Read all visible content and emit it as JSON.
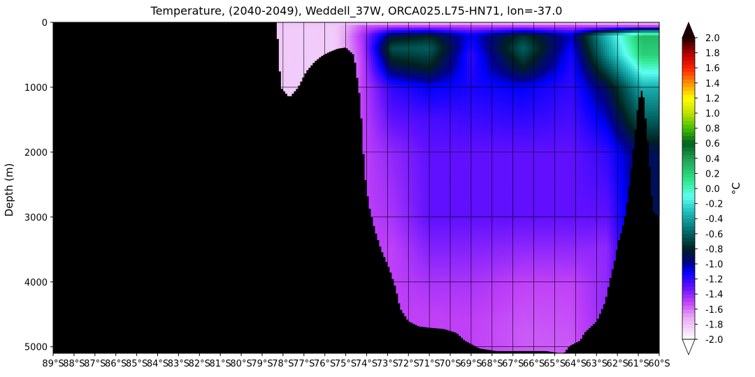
{
  "chart_data": {
    "type": "heatmap",
    "title": "Temperature, (2040-2049), Weddell_37W, ORCA025.L75-HN71, lon=-37.0",
    "ylabel": "Depth (m)",
    "xlabel": "",
    "x_ticks": [
      "89°S",
      "88°S",
      "87°S",
      "86°S",
      "85°S",
      "84°S",
      "83°S",
      "82°S",
      "81°S",
      "80°S",
      "79°S",
      "78°S",
      "77°S",
      "76°S",
      "75°S",
      "74°S",
      "73°S",
      "72°S",
      "71°S",
      "70°S",
      "69°S",
      "68°S",
      "67°S",
      "66°S",
      "65°S",
      "64°S",
      "63°S",
      "62°S",
      "61°S",
      "60°S"
    ],
    "x_tick_values": [
      -89,
      -88,
      -87,
      -86,
      -85,
      -84,
      -83,
      -82,
      -81,
      -80,
      -79,
      -78,
      -77,
      -76,
      -75,
      -74,
      -73,
      -72,
      -71,
      -70,
      -69,
      -68,
      -67,
      -66,
      -65,
      -64,
      -63,
      -62,
      -61,
      -60
    ],
    "y_ticks": [
      "0",
      "1000",
      "2000",
      "3000",
      "4000",
      "5000"
    ],
    "y_tick_values": [
      0,
      1000,
      2000,
      3000,
      4000,
      5000
    ],
    "xlim": [
      -89,
      -60
    ],
    "ylim": [
      5100,
      0
    ],
    "grid": true,
    "colorbar": {
      "label": "°C",
      "tick_labels": [
        "2.0",
        "1.8",
        "1.6",
        "1.4",
        "1.2",
        "1.0",
        "0.8",
        "0.6",
        "0.4",
        "0.2",
        "0.0",
        "-0.2",
        "-0.4",
        "-0.6",
        "-0.8",
        "-1.0",
        "-1.2",
        "-1.4",
        "-1.6",
        "-1.8",
        "-2.0"
      ],
      "tick_values": [
        2.0,
        1.8,
        1.6,
        1.4,
        1.2,
        1.0,
        0.8,
        0.6,
        0.4,
        0.2,
        0.0,
        -0.2,
        -0.4,
        -0.6,
        -0.8,
        -1.0,
        -1.2,
        -1.4,
        -1.6,
        -1.8,
        -2.0
      ],
      "range": [
        -2.0,
        2.0
      ],
      "extend": "both",
      "colors": [
        {
          "v": -2.0,
          "c": "#ffffff"
        },
        {
          "v": -1.7,
          "c": "#e8a8f5"
        },
        {
          "v": -1.5,
          "c": "#c040f8"
        },
        {
          "v": -1.3,
          "c": "#6010ff"
        },
        {
          "v": -1.1,
          "c": "#0000ff"
        },
        {
          "v": -1.0,
          "c": "#000090"
        },
        {
          "v": -0.8,
          "c": "#002020"
        },
        {
          "v": -0.6,
          "c": "#006060"
        },
        {
          "v": -0.3,
          "c": "#20c0c0"
        },
        {
          "v": -0.1,
          "c": "#60fff0"
        },
        {
          "v": 0.1,
          "c": "#30e890"
        },
        {
          "v": 0.4,
          "c": "#20a050"
        },
        {
          "v": 0.6,
          "c": "#006020"
        },
        {
          "v": 0.8,
          "c": "#40c000"
        },
        {
          "v": 1.0,
          "c": "#c0e000"
        },
        {
          "v": 1.2,
          "c": "#ffff00"
        },
        {
          "v": 1.4,
          "c": "#ff9000"
        },
        {
          "v": 1.6,
          "c": "#ff2000"
        },
        {
          "v": 1.8,
          "c": "#b00000"
        },
        {
          "v": 2.0,
          "c": "#200000"
        }
      ]
    },
    "land_color": "#000000",
    "bathymetry": {
      "lat": [
        -89,
        -78.3,
        -78.1,
        -77.7,
        -77.3,
        -76.9,
        -76.5,
        -76.2,
        -75.8,
        -75.4,
        -75.0,
        -74.6,
        -74.3,
        -74.1,
        -73.9,
        -73.6,
        -73.3,
        -72.9,
        -72.6,
        -72.4,
        -72.0,
        -71.5,
        -71.0,
        -70.3,
        -69.7,
        -69.3,
        -68.6,
        -67.8,
        -67.0,
        -66.2,
        -65.4,
        -64.6,
        -64.3,
        -63.8,
        -63.6,
        -63.0,
        -62.6,
        -62.4,
        -62.1,
        -62.0,
        -61.8,
        -61.6,
        -61.4,
        -61.2,
        -61.0,
        -60.8,
        -60.7,
        -60.5,
        -60.3,
        -60.0
      ],
      "depth": [
        0,
        0,
        1000,
        1150,
        1000,
        750,
        600,
        520,
        450,
        400,
        380,
        500,
        1200,
        2300,
        2800,
        3200,
        3500,
        3800,
        4100,
        4400,
        4600,
        4680,
        4700,
        4720,
        4780,
        4900,
        5020,
        5060,
        5060,
        5060,
        5060,
        5100,
        4980,
        4900,
        4780,
        4600,
        4300,
        4000,
        3600,
        3400,
        3200,
        2900,
        2400,
        1800,
        1200,
        1000,
        1300,
        2000,
        2900,
        3000
      ]
    },
    "temperature_profiles": [
      {
        "lat": -78.3,
        "depths": [
          0,
          100,
          500,
          1000,
          1100
        ],
        "values": [
          -1.8,
          -1.82,
          -1.82,
          -1.82,
          -1.82
        ]
      },
      {
        "lat": -75.5,
        "depths": [
          0,
          100,
          500
        ],
        "values": [
          -1.8,
          -1.82,
          -1.82
        ]
      },
      {
        "lat": -74.2,
        "depths": [
          0,
          60,
          200,
          600,
          1000,
          2000
        ],
        "values": [
          -1.8,
          -1.55,
          -1.45,
          -1.5,
          -1.5,
          -1.5
        ]
      },
      {
        "lat": -72.8,
        "depths": [
          0,
          60,
          200,
          400,
          700,
          1000,
          2000,
          3000,
          3500
        ],
        "values": [
          -1.8,
          -1.5,
          -0.9,
          -0.65,
          -0.9,
          -1.2,
          -1.4,
          -1.45,
          -1.5
        ]
      },
      {
        "lat": -71.0,
        "depths": [
          0,
          60,
          200,
          400,
          700,
          1000,
          1500,
          2000,
          3000,
          4000,
          4500
        ],
        "values": [
          -1.8,
          -1.5,
          -0.8,
          -0.6,
          -0.8,
          -1.1,
          -1.25,
          -1.3,
          -1.3,
          -1.45,
          -1.5
        ]
      },
      {
        "lat": -69.0,
        "depths": [
          0,
          60,
          200,
          500,
          1000,
          2000,
          3000,
          4000,
          4600
        ],
        "values": [
          -1.8,
          -1.5,
          -1.1,
          -1.2,
          -1.15,
          -1.3,
          -1.3,
          -1.45,
          -1.5
        ]
      },
      {
        "lat": -66.5,
        "depths": [
          0,
          60,
          200,
          400,
          700,
          1000,
          2000,
          3000,
          4000,
          4800
        ],
        "values": [
          -1.8,
          -1.5,
          -0.75,
          -0.6,
          -0.8,
          -1.1,
          -1.3,
          -1.3,
          -1.5,
          -1.55
        ]
      },
      {
        "lat": -64.2,
        "depths": [
          0,
          60,
          200,
          500,
          1000,
          2000,
          3000,
          4000,
          5000
        ],
        "values": [
          -1.8,
          -1.5,
          -1.05,
          -1.15,
          -1.2,
          -1.3,
          -1.3,
          -1.5,
          -1.55
        ]
      },
      {
        "lat": -62.5,
        "depths": [
          0,
          60,
          200,
          500,
          1000,
          2000,
          3000,
          3500
        ],
        "values": [
          -1.8,
          -1.5,
          -0.3,
          -0.45,
          -0.9,
          -1.2,
          -1.3,
          -1.4
        ]
      },
      {
        "lat": -60.8,
        "depths": [
          0,
          60,
          200,
          500,
          1000,
          1500,
          2000
        ],
        "values": [
          -1.8,
          -1.5,
          0.3,
          0.2,
          -0.35,
          -0.6,
          -0.9
        ]
      }
    ]
  }
}
